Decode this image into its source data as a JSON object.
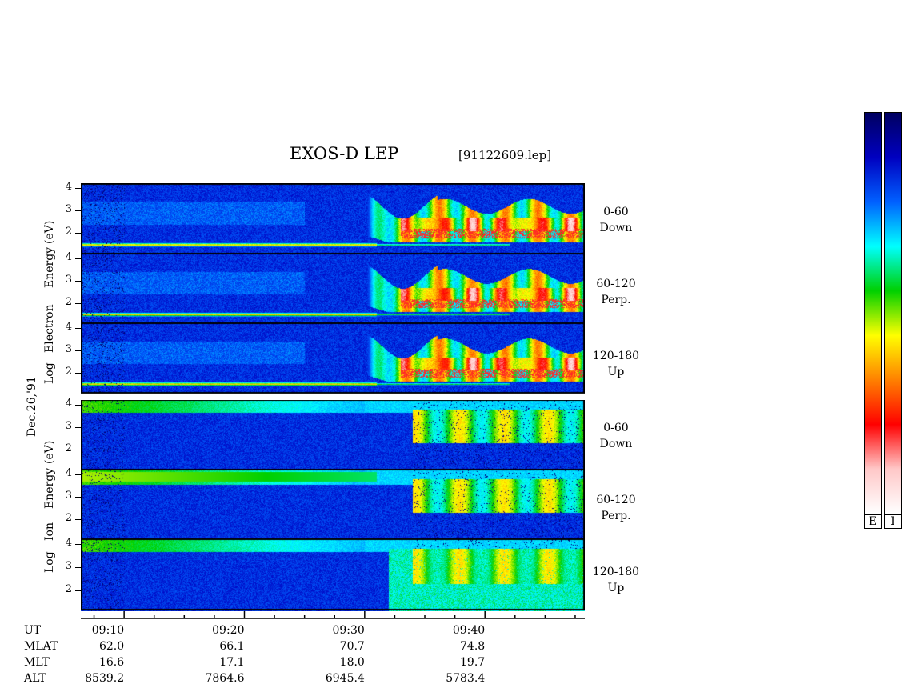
{
  "title": "EXOS-D LEP",
  "file_id": "[91122609.lep]",
  "date_label": "Dec.26,'91",
  "electron_axis": [
    "Log",
    "Electron",
    "Energy",
    "(eV)"
  ],
  "ion_axis": [
    "Log",
    "Ion",
    "Energy",
    "(eV)"
  ],
  "panels": [
    {
      "species": "electron",
      "pitch": "0-60",
      "dir": "Down"
    },
    {
      "species": "electron",
      "pitch": "60-120",
      "dir": "Perp."
    },
    {
      "species": "electron",
      "pitch": "120-180",
      "dir": "Up"
    },
    {
      "species": "ion",
      "pitch": "0-60",
      "dir": "Down"
    },
    {
      "species": "ion",
      "pitch": "60-120",
      "dir": "Perp."
    },
    {
      "species": "ion",
      "pitch": "120-180",
      "dir": "Up"
    }
  ],
  "y_ticks": [
    "4",
    "3",
    "2"
  ],
  "orbit_table": {
    "rows": [
      "UT",
      "MLAT",
      "MLT",
      "ALT"
    ],
    "columns": [
      {
        "UT": "09:10",
        "MLAT": "62.0",
        "MLT": "16.6",
        "ALT": "8539.2"
      },
      {
        "UT": "09:20",
        "MLAT": "66.1",
        "MLT": "17.1",
        "ALT": "7864.6"
      },
      {
        "UT": "09:30",
        "MLAT": "70.7",
        "MLT": "18.0",
        "ALT": "6945.4"
      },
      {
        "UT": "09:40",
        "MLAT": "74.8",
        "MLT": "19.7",
        "ALT": "5783.4"
      }
    ]
  },
  "colorbar_labels": [
    "E",
    "I"
  ],
  "chart_data": {
    "type": "heatmap",
    "title": "EXOS-D LEP",
    "xlabel": "UT",
    "ylabel": "Log Energy (eV)",
    "x_ticks": [
      "09:10",
      "09:20",
      "09:30",
      "09:40"
    ],
    "x_range_min": [
      6.4,
      48.3
    ],
    "y_ticks": [
      2,
      3,
      4
    ],
    "ylim": [
      1.1,
      4.2
    ],
    "colormap": [
      "#ffffff",
      "#ffc8c8",
      "#ff0000",
      "#ff8000",
      "#ffff00",
      "#00d000",
      "#00ffff",
      "#0060ff",
      "#0000c0",
      "#000060"
    ],
    "series": [
      {
        "name": "Electron 0-60 Down",
        "band_energy": 1.5,
        "feature_start_min": 30.0
      },
      {
        "name": "Electron 60-120 Perp.",
        "band_energy": 1.5,
        "feature_start_min": 30.0
      },
      {
        "name": "Electron 120-180 Up",
        "band_energy": 1.5,
        "feature_start_min": 30.0
      },
      {
        "name": "Ion 0-60 Down",
        "band_energy": 4.0,
        "feature_start_min": 34.0
      },
      {
        "name": "Ion 60-120 Perp.",
        "band_energy": 3.9,
        "feature_start_min": 34.0
      },
      {
        "name": "Ion 120-180 Up",
        "band_energy": 4.0,
        "feature_start_min": 34.0
      }
    ]
  }
}
